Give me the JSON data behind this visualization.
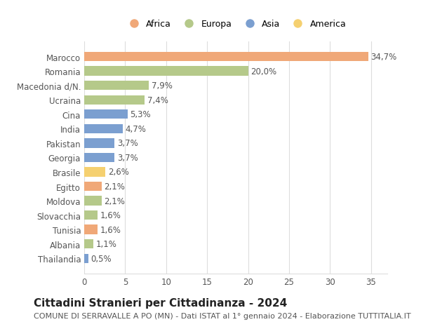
{
  "countries": [
    "Marocco",
    "Romania",
    "Macedonia d/N.",
    "Ucraina",
    "Cina",
    "India",
    "Pakistan",
    "Georgia",
    "Brasile",
    "Egitto",
    "Moldova",
    "Slovacchia",
    "Tunisia",
    "Albania",
    "Thailandia"
  ],
  "values": [
    34.7,
    20.0,
    7.9,
    7.4,
    5.3,
    4.7,
    3.7,
    3.7,
    2.6,
    2.1,
    2.1,
    1.6,
    1.6,
    1.1,
    0.5
  ],
  "labels": [
    "34,7%",
    "20,0%",
    "7,9%",
    "7,4%",
    "5,3%",
    "4,7%",
    "3,7%",
    "3,7%",
    "2,6%",
    "2,1%",
    "2,1%",
    "1,6%",
    "1,6%",
    "1,1%",
    "0,5%"
  ],
  "continents": [
    "Africa",
    "Europa",
    "Europa",
    "Europa",
    "Asia",
    "Asia",
    "Asia",
    "Asia",
    "America",
    "Africa",
    "Europa",
    "Europa",
    "Africa",
    "Europa",
    "Asia"
  ],
  "colors": {
    "Africa": "#F0A878",
    "Europa": "#B5C98A",
    "Asia": "#7B9FD0",
    "America": "#F5D070"
  },
  "legend_entries": [
    "Africa",
    "Europa",
    "Asia",
    "America"
  ],
  "xlim": [
    0,
    37
  ],
  "xticks": [
    0,
    5,
    10,
    15,
    20,
    25,
    30,
    35
  ],
  "title": "Cittadini Stranieri per Cittadinanza - 2024",
  "subtitle": "COMUNE DI SERRAVALLE A PO (MN) - Dati ISTAT al 1° gennaio 2024 - Elaborazione TUTTITALIA.IT",
  "title_fontsize": 11,
  "subtitle_fontsize": 8,
  "bar_height": 0.65,
  "background_color": "#ffffff",
  "grid_color": "#dddddd",
  "label_fontsize": 8.5,
  "ytick_fontsize": 8.5,
  "xtick_fontsize": 8.5
}
